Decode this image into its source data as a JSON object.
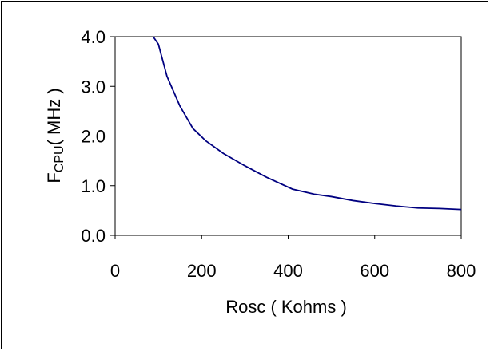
{
  "chart_data": {
    "type": "line",
    "title": "",
    "xlabel": "Rosc ( Kohms )",
    "ylabel": {
      "main": "F",
      "subscript": "CPU",
      "suffix": "( MHz )"
    },
    "xlim": [
      0,
      800
    ],
    "ylim": [
      0.0,
      4.0
    ],
    "xticks": [
      "0",
      "200",
      "400",
      "600",
      "800"
    ],
    "yticks": [
      "0.0",
      "1.0",
      "2.0",
      "3.0",
      "4.0"
    ],
    "grid": false,
    "legend": "none",
    "line_color": "#000080",
    "series": [
      {
        "x": [
          88,
          100,
          120,
          150,
          180,
          210,
          250,
          300,
          350,
          410,
          460,
          500,
          550,
          600,
          650,
          700,
          750,
          800
        ],
        "y": [
          4.0,
          3.85,
          3.2,
          2.6,
          2.15,
          1.9,
          1.65,
          1.4,
          1.17,
          0.93,
          0.83,
          0.78,
          0.7,
          0.64,
          0.59,
          0.55,
          0.54,
          0.52
        ]
      }
    ]
  }
}
